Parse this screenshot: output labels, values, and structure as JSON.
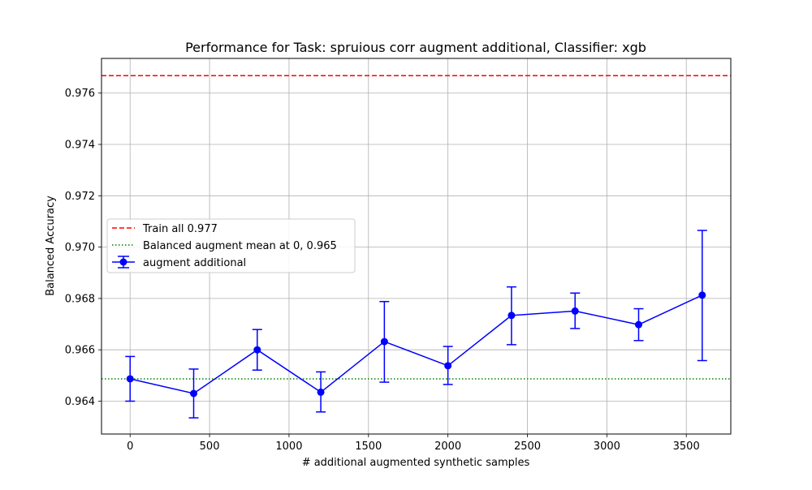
{
  "chart_data": {
    "type": "line",
    "title": "Performance for Task: spruious corr augment additional, Classifier: xgb",
    "xlabel": "# additional augmented synthetic samples",
    "ylabel": "Balanced Accuracy",
    "xlim": [
      -180,
      3780
    ],
    "ylim": [
      0.96272,
      0.97735
    ],
    "xticks": [
      0,
      500,
      1000,
      1500,
      2000,
      2500,
      3000,
      3500
    ],
    "xtick_labels": [
      "0",
      "500",
      "1000",
      "1500",
      "2000",
      "2500",
      "3000",
      "3500"
    ],
    "yticks": [
      0.964,
      0.966,
      0.968,
      0.97,
      0.972,
      0.974,
      0.976
    ],
    "ytick_labels": [
      "0.964",
      "0.966",
      "0.968",
      "0.970",
      "0.972",
      "0.974",
      "0.976"
    ],
    "grid": true,
    "legend_position": "center-left",
    "series": [
      {
        "name": "augment additional",
        "color": "#0000ff",
        "x": [
          0,
          400,
          800,
          1200,
          1600,
          2000,
          2400,
          2800,
          3200,
          3600
        ],
        "y": [
          0.96487,
          0.9643,
          0.966,
          0.96435,
          0.96632,
          0.96538,
          0.96734,
          0.96751,
          0.96698,
          0.96813
        ],
        "err_low": [
          0.964,
          0.96335,
          0.96521,
          0.96358,
          0.96474,
          0.96465,
          0.9662,
          0.96683,
          0.96636,
          0.96558
        ],
        "err_high": [
          0.96574,
          0.96525,
          0.96679,
          0.96514,
          0.96788,
          0.96613,
          0.96845,
          0.96821,
          0.9676,
          0.97065
        ]
      }
    ],
    "reference_lines": [
      {
        "name": "Train all  0.977",
        "value": 0.97668,
        "color": "#ff0000",
        "style": "dashed"
      },
      {
        "name": "Balanced augment mean at 0, 0.965",
        "value": 0.96487,
        "color": "#008000",
        "style": "dotted"
      }
    ]
  }
}
